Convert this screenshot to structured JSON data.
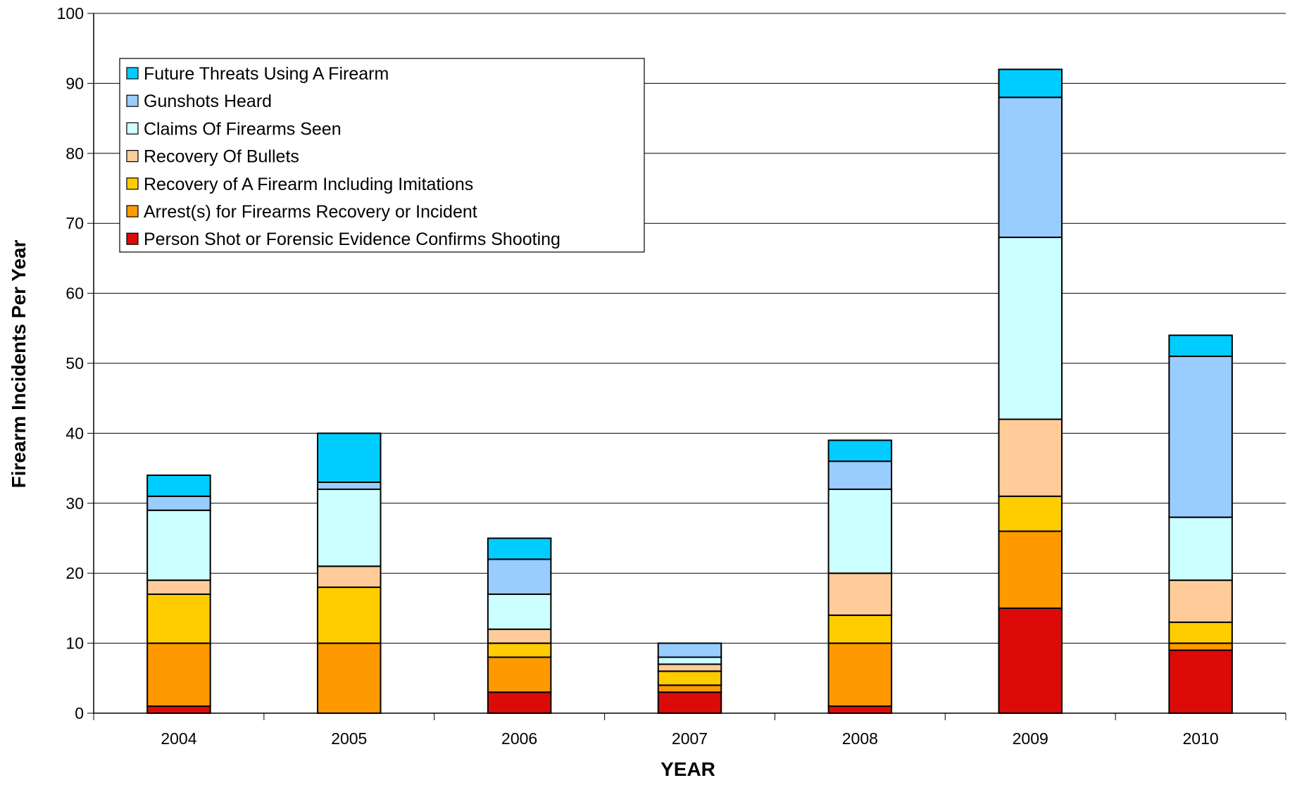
{
  "chart_data": {
    "type": "bar",
    "stacked": true,
    "title": "",
    "xlabel": "YEAR",
    "ylabel": "Firearm Incidents Per Year",
    "ylim": [
      0,
      100
    ],
    "yticks": [
      "0",
      "10",
      "20",
      "30",
      "40",
      "50",
      "60",
      "70",
      "80",
      "90",
      "100"
    ],
    "grid": "horizontal",
    "legend_position": "top-left",
    "categories": [
      "2004",
      "2005",
      "2006",
      "2007",
      "2008",
      "2009",
      "2010"
    ],
    "series": [
      {
        "name": "Person Shot or Forensic Evidence Confirms Shooting",
        "color": "#DD0A0A",
        "values": [
          1,
          0,
          3,
          3,
          1,
          15,
          9
        ]
      },
      {
        "name": "Arrest(s) for Firearms Recovery or Incident",
        "color": "#FF9900",
        "values": [
          9,
          10,
          5,
          1,
          9,
          11,
          1
        ]
      },
      {
        "name": "Recovery of A Firearm Including Imitations",
        "color": "#FFCC00",
        "values": [
          7,
          8,
          2,
          2,
          4,
          5,
          3
        ]
      },
      {
        "name": "Recovery Of Bullets",
        "color": "#FFCC99",
        "values": [
          2,
          3,
          2,
          1,
          6,
          11,
          6
        ]
      },
      {
        "name": "Claims Of Firearms Seen",
        "color": "#CCFFFF",
        "values": [
          10,
          11,
          5,
          1,
          12,
          26,
          9
        ]
      },
      {
        "name": "Gunshots Heard",
        "color": "#99CCFF",
        "values": [
          2,
          1,
          5,
          2,
          4,
          20,
          23
        ]
      },
      {
        "name": "Future Threats Using A Firearm",
        "color": "#00CCFF",
        "values": [
          3,
          7,
          3,
          0,
          3,
          4,
          3
        ]
      }
    ]
  }
}
